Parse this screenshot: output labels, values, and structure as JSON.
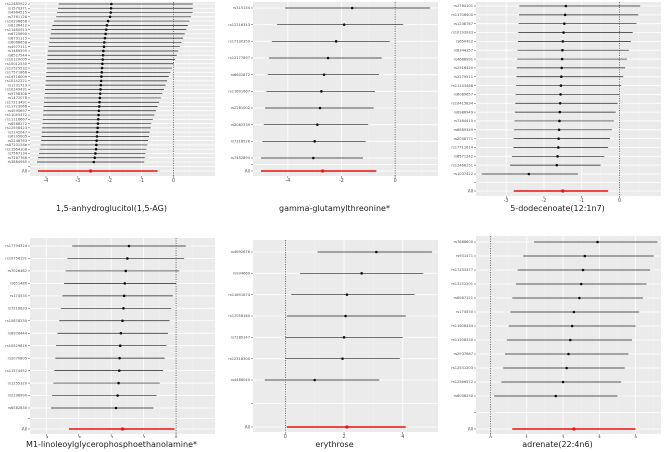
{
  "chart_data": [
    {
      "type": "forest",
      "xlabel": "1,5-anhydroglucitol(1,5-AG)",
      "xlim": [
        -4.5,
        1.3
      ],
      "xticks": [
        -4,
        -3,
        -2,
        -1,
        0
      ],
      "snps": [
        "rs12485922",
        "rs1570371",
        "rs4964515",
        "rs7761128",
        "rs10296658",
        "rs6136412",
        "rs11480913",
        "rs6725690",
        "rs6791115",
        "rs6068658",
        "rs4977111",
        "rs1489595",
        "rs6527544",
        "rs10120005",
        "rs10012530",
        "rs12525532",
        "rs17571866",
        "rs14716009",
        "rs10142221",
        "rs1131719",
        "rs10149431",
        "rs9758308",
        "rs1472078",
        "rs17213491",
        "rs11723066",
        "rs4595697",
        "rs11045472",
        "rs11116667",
        "rs6568272",
        "rs12558423",
        "rs2142047",
        "rs6195005",
        "rs2248763",
        "rs8723154e",
        "rs11564108",
        "rs7567134",
        "rs7267768",
        "rs3884965"
      ],
      "estimates": [
        -1.95,
        -1.96,
        -1.97,
        -1.99,
        -2.05,
        -2.09,
        -2.11,
        -2.13,
        -2.15,
        -2.17,
        -2.18,
        -2.2,
        -2.21,
        -2.22,
        -2.23,
        -2.24,
        -2.25,
        -2.26,
        -2.27,
        -2.28,
        -2.29,
        -2.3,
        -2.31,
        -2.32,
        -2.33,
        -2.34,
        -2.35,
        -2.36,
        -2.37,
        -2.38,
        -2.39,
        -2.4,
        -2.41,
        -2.42,
        -2.43,
        -2.45,
        -2.47,
        -2.5
      ],
      "lower": [
        -3.6,
        -3.62,
        -3.65,
        -3.68,
        -3.75,
        -3.8,
        -3.83,
        -3.85,
        -3.88,
        -3.9,
        -3.92,
        -3.94,
        -3.95,
        -3.96,
        -3.97,
        -3.98,
        -3.99,
        -4.0,
        -4.01,
        -4.02,
        -4.03,
        -4.04,
        -4.05,
        -4.06,
        -4.07,
        -4.08,
        -4.09,
        -4.1,
        -4.11,
        -4.12,
        -4.13,
        -4.14,
        -4.15,
        -4.17,
        -4.2,
        -4.22,
        -4.25,
        -4.28
      ],
      "upper": [
        0.6,
        0.6,
        0.6,
        0.55,
        0.5,
        0.45,
        0.4,
        0.35,
        0.3,
        0.25,
        0.2,
        0.15,
        0.1,
        0.05,
        0.0,
        -0.05,
        -0.1,
        -0.15,
        -0.2,
        -0.25,
        -0.3,
        -0.35,
        -0.4,
        -0.45,
        -0.5,
        -0.55,
        -0.6,
        -0.65,
        -0.7,
        -0.72,
        -0.75,
        -0.77,
        -0.8,
        -0.82,
        -0.85,
        -0.88,
        -0.9,
        -0.92
      ],
      "overall": {
        "label": "All",
        "estimate": -2.6,
        "lower": -4.25,
        "upper": -0.5
      }
    },
    {
      "type": "forest",
      "xlabel": "gamma-glutamylthreonine*",
      "xlim": [
        -5.3,
        1.6
      ],
      "xticks": [
        -4,
        -2,
        0
      ],
      "snps": [
        "rs315154",
        "rs12216313",
        "rs17130359",
        "rs12177897",
        "rs6602872",
        "rs11691667",
        "rs2281002",
        "rs2062539",
        "rs7316526",
        "rs7452894"
      ],
      "estimates": [
        -1.6,
        -1.9,
        -2.2,
        -2.5,
        -2.65,
        -2.75,
        -2.8,
        -2.9,
        -3.0,
        -3.05
      ],
      "lower": [
        -4.1,
        -4.4,
        -4.6,
        -4.7,
        -4.75,
        -4.8,
        -4.85,
        -4.9,
        -4.95,
        -5.0
      ],
      "upper": [
        1.3,
        0.3,
        -0.2,
        -0.5,
        -0.6,
        -0.75,
        -0.8,
        -1.0,
        -1.1,
        -1.2
      ],
      "overall": {
        "label": "All",
        "estimate": -2.7,
        "lower": -5.0,
        "upper": -0.7
      }
    },
    {
      "type": "forest",
      "xlabel": "5-dodecenoate(12:1n7)",
      "xlim": [
        -3.8,
        1.1
      ],
      "xticks": [
        -3,
        -2,
        -1,
        0
      ],
      "snps": [
        "rs2784101",
        "rs11706400",
        "rs1238767",
        "rs10193933",
        "rs650422",
        "rs6344157",
        "rs4668991",
        "rs2916420",
        "rs2279511",
        "rs11133466",
        "rs6089657",
        "rs10415834",
        "rs6986949",
        "rs7164415",
        "rs6689349",
        "rs2058771",
        "rs17711614",
        "rs6571242",
        "rs12466151",
        "rs1037422"
      ],
      "estimates": [
        -1.42,
        -1.44,
        -1.46,
        -1.48,
        -1.5,
        -1.51,
        -1.52,
        -1.53,
        -1.54,
        -1.55,
        -1.56,
        -1.57,
        -1.58,
        -1.59,
        -1.6,
        -1.61,
        -1.62,
        -1.64,
        -1.66,
        -2.4
      ],
      "lower": [
        -2.65,
        -2.66,
        -2.67,
        -2.68,
        -2.69,
        -2.7,
        -2.71,
        -2.72,
        -2.73,
        -2.74,
        -2.75,
        -2.76,
        -2.77,
        -2.78,
        -2.79,
        -2.8,
        -2.81,
        -2.85,
        -2.9,
        -3.65
      ],
      "upper": [
        0.55,
        0.5,
        0.45,
        0.35,
        0.3,
        0.25,
        0.2,
        0.15,
        0.1,
        0.05,
        0.0,
        -0.05,
        -0.1,
        -0.15,
        -0.2,
        -0.25,
        -0.3,
        -0.4,
        -0.5,
        -1.1
      ],
      "overall": {
        "label": "All",
        "estimate": -1.5,
        "lower": -2.8,
        "upper": -0.3
      }
    },
    {
      "type": "forest",
      "xlabel": "M1-linoleoylglycerophosphoethanolamine*",
      "xlim": [
        -4.5,
        1.2
      ],
      "xticks": [
        -4,
        -3,
        -2,
        -1,
        0
      ],
      "snps": [
        "rs17794324",
        "rs10756191",
        "rs7026462",
        "rs651480",
        "rs174535",
        "rs7219833",
        "rs10878230",
        "rs6978444",
        "rs10529819",
        "rs2070805",
        "rs11574452",
        "rs1255320",
        "rs2198990",
        "rs6582830"
      ],
      "estimates": [
        -1.45,
        -1.5,
        -1.55,
        -1.58,
        -1.6,
        -1.62,
        -1.65,
        -1.7,
        -1.72,
        -1.74,
        -1.75,
        -1.77,
        -1.8,
        -1.85
      ],
      "lower": [
        -3.2,
        -3.35,
        -3.4,
        -3.45,
        -3.5,
        -3.55,
        -3.6,
        -3.65,
        -3.7,
        -3.72,
        -3.75,
        -3.78,
        -3.82,
        -3.85
      ],
      "upper": [
        0.3,
        0.25,
        0.1,
        0.0,
        -0.1,
        -0.15,
        -0.2,
        -0.25,
        -0.3,
        -0.35,
        -0.4,
        -0.5,
        -0.6,
        -0.7
      ],
      "overall": {
        "label": "All",
        "estimate": -1.65,
        "lower": -3.3,
        "upper": -0.05
      }
    },
    {
      "type": "forest",
      "xlabel": "erythrose",
      "xlim": [
        -1.1,
        5.2
      ],
      "xticks": [
        0,
        2,
        4
      ],
      "snps": [
        "rs4692676",
        "rs934669",
        "rs11691874",
        "rs17058160",
        "rs7289147",
        "rs12318300",
        "rs4468040"
      ],
      "estimates": [
        3.1,
        2.6,
        2.1,
        2.05,
        2.0,
        1.95,
        1.0
      ],
      "lower": [
        1.1,
        0.5,
        0.2,
        0.05,
        0.0,
        0.0,
        -0.7
      ],
      "upper": [
        5.0,
        4.7,
        4.4,
        4.1,
        4.0,
        3.9,
        3.2
      ],
      "overall": {
        "label": "All",
        "estimate": 2.1,
        "lower": 0.05,
        "upper": 4.1
      }
    },
    {
      "type": "forest",
      "xlabel": "adrenate(22:4n6)",
      "xlim": [
        -0.4,
        4.7
      ],
      "xticks": [
        0,
        1,
        2,
        3,
        4
      ],
      "snps": [
        "rs7688600",
        "rs931471",
        "rs17233377",
        "rs13152201",
        "rs6987121",
        "rs174550",
        "rs11606434",
        "rs11208330",
        "rs2937667",
        "rs12531203",
        "rs12566572",
        "rs6006250"
      ],
      "estimates": [
        2.95,
        2.6,
        2.55,
        2.5,
        2.45,
        2.3,
        2.25,
        2.2,
        2.15,
        2.1,
        2.0,
        1.8
      ],
      "lower": [
        1.2,
        0.9,
        0.75,
        0.7,
        0.6,
        0.55,
        0.5,
        0.45,
        0.4,
        0.35,
        0.3,
        0.1
      ],
      "upper": [
        4.6,
        4.5,
        4.4,
        4.3,
        4.2,
        4.1,
        4.0,
        3.9,
        3.8,
        3.7,
        3.6,
        3.5
      ],
      "overall": {
        "label": "All",
        "estimate": 2.3,
        "lower": 0.6,
        "upper": 4.0
      }
    }
  ]
}
